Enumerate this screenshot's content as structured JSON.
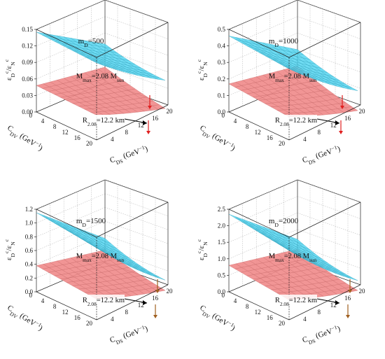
{
  "chart_data": [
    {
      "type": "surface3d",
      "title": "m",
      "title_sub": "D",
      "title_value": "=500",
      "ylabel_tag": "ε",
      "ylabel_sub1": "D",
      "ylabel_sup1": "c",
      "ylabel_sep": "/ε",
      "ylabel_sub2": "N",
      "ylabel_sup2": "c",
      "xlabel": "C",
      "xlabel_sub": "DS",
      "xlabel_unit": " (GeV",
      "xlabel_exp": "−1",
      "xlabel_close": ")",
      "zlabel": "C",
      "zlabel_sub": "DV",
      "zlabel_unit": " (GeV",
      "zlabel_exp": "−1",
      "zlabel_close": ")",
      "z_ticks": [
        "0.00",
        "0.03",
        "0.06",
        "0.09",
        "0.12",
        "0.15"
      ],
      "z_range": [
        0,
        0.15
      ],
      "x_ticks": [
        "4",
        "8",
        "12",
        "16",
        "20"
      ],
      "x_range": [
        0,
        20
      ],
      "y_ticks": [
        "0",
        "4",
        "8",
        "12",
        "16",
        "20"
      ],
      "y_range": [
        0,
        20
      ],
      "corner_x_zero": "0",
      "surfaces": [
        {
          "name": "Mmax",
          "color": "#4fd4f0",
          "corners": {
            "a": 0.145,
            "b": 0.14,
            "c": 0.055,
            "d": 0.07
          }
        },
        {
          "name": "R2.08",
          "color": "#f08a8a",
          "corners": {
            "a": 0.048,
            "b": 0.045,
            "c": 0.004,
            "d": 0.028
          }
        }
      ],
      "annotations": [
        {
          "main": "M",
          "sub": "max",
          "rest": "=2.08 M",
          "sub2": "sun"
        },
        {
          "main": "R",
          "sub": "2.08",
          "rest": "=12.2 km",
          "sub2": ""
        }
      ]
    },
    {
      "type": "surface3d",
      "title": "m",
      "title_sub": "D",
      "title_value": "=1000",
      "ylabel_tag": "ε",
      "ylabel_sub1": "D",
      "ylabel_sup1": "c",
      "ylabel_sep": "/ε",
      "ylabel_sub2": "N",
      "ylabel_sup2": "c",
      "xlabel": "C",
      "xlabel_sub": "DS",
      "xlabel_unit": " (GeV",
      "xlabel_exp": "−1",
      "xlabel_close": ")",
      "zlabel": "C",
      "zlabel_sub": "DV",
      "zlabel_unit": " (GeV",
      "zlabel_exp": "−1",
      "zlabel_close": ")",
      "z_ticks": [
        "0.0",
        "0.1",
        "0.2",
        "0.3",
        "0.4",
        "0.5"
      ],
      "z_range": [
        0,
        0.5
      ],
      "x_ticks": [
        "4",
        "8",
        "12",
        "16",
        "20"
      ],
      "x_range": [
        0,
        20
      ],
      "y_ticks": [
        "0",
        "4",
        "8",
        "12",
        "16",
        "20"
      ],
      "y_range": [
        0,
        20
      ],
      "corner_x_zero": "0",
      "surfaces": [
        {
          "name": "Mmax",
          "color": "#4fd4f0",
          "corners": {
            "a": 0.46,
            "b": 0.43,
            "c": 0.12,
            "d": 0.2
          }
        },
        {
          "name": "R2.08",
          "color": "#f08a8a",
          "corners": {
            "a": 0.17,
            "b": 0.14,
            "c": 0.0,
            "d": 0.1
          }
        }
      ],
      "annotations": [
        {
          "main": "M",
          "sub": "max",
          "rest": "=2.08 M",
          "sub2": "sun"
        },
        {
          "main": "R",
          "sub": "2.08",
          "rest": "=12.2 km",
          "sub2": ""
        }
      ]
    },
    {
      "type": "surface3d",
      "title": "m",
      "title_sub": "D",
      "title_value": "=1500",
      "ylabel_tag": "ε",
      "ylabel_sub1": "D",
      "ylabel_sup1": "c",
      "ylabel_sep": "/ε",
      "ylabel_sub2": "N",
      "ylabel_sup2": "c",
      "xlabel": "C",
      "xlabel_sub": "DS",
      "xlabel_unit": " (GeV",
      "xlabel_exp": "−1",
      "xlabel_close": ")",
      "zlabel": "C",
      "zlabel_sub": "DV",
      "zlabel_unit": " (GeV",
      "zlabel_exp": "−1",
      "zlabel_close": ")",
      "z_ticks": [
        "0.0",
        "0.2",
        "0.4",
        "0.6",
        "0.8",
        "1.0",
        "1.2"
      ],
      "z_range": [
        0,
        1.2
      ],
      "x_ticks": [
        "4",
        "8",
        "12",
        "16",
        "20"
      ],
      "x_range": [
        0,
        20
      ],
      "y_ticks": [
        "0",
        "4",
        "8",
        "12",
        "16",
        "20"
      ],
      "y_range": [
        0,
        20
      ],
      "corner_x_zero": "0",
      "surfaces": [
        {
          "name": "Mmax",
          "color": "#4fd4f0",
          "corners": {
            "a": 1.15,
            "b": 1.05,
            "c": 0.15,
            "d": 0.35
          }
        },
        {
          "name": "R2.08",
          "color": "#f08a8a",
          "corners": {
            "a": 0.38,
            "b": 0.3,
            "c": 0.0,
            "d": 0.18
          }
        }
      ],
      "annotations": [
        {
          "main": "M",
          "sub": "max",
          "rest": "=2.08 M",
          "sub2": "sun"
        },
        {
          "main": "R",
          "sub": "2.08",
          "rest": "=12.2 km",
          "sub2": ""
        }
      ]
    },
    {
      "type": "surface3d",
      "title": "m",
      "title_sub": "D",
      "title_value": "=2000",
      "ylabel_tag": "ε",
      "ylabel_sub1": "D",
      "ylabel_sup1": "c",
      "ylabel_sep": "/ε",
      "ylabel_sub2": "N",
      "ylabel_sup2": "c",
      "xlabel": "C",
      "xlabel_sub": "DS",
      "xlabel_unit": " (GeV",
      "xlabel_exp": "−1",
      "xlabel_close": ")",
      "zlabel": "C",
      "zlabel_sub": "DV",
      "zlabel_unit": " (GeV",
      "zlabel_exp": "−1",
      "zlabel_close": ")",
      "z_ticks": [
        "0.0",
        "0.5",
        "1.0",
        "1.5",
        "2.0",
        "2.5"
      ],
      "z_range": [
        0,
        2.5
      ],
      "x_ticks": [
        "4",
        "8",
        "12",
        "16",
        "20"
      ],
      "x_range": [
        0,
        20
      ],
      "y_ticks": [
        "0",
        "4",
        "8",
        "12",
        "16",
        "20"
      ],
      "y_range": [
        0,
        20
      ],
      "corner_x_zero": "0",
      "surfaces": [
        {
          "name": "Mmax",
          "color": "#4fd4f0",
          "corners": {
            "a": 2.35,
            "b": 2.1,
            "c": 0.3,
            "d": 0.7
          }
        },
        {
          "name": "R2.08",
          "color": "#f08a8a",
          "corners": {
            "a": 0.8,
            "b": 0.6,
            "c": 0.0,
            "d": 0.4
          }
        }
      ],
      "annotations": [
        {
          "main": "M",
          "sub": "max",
          "rest": "=2.08 M",
          "sub2": "sun"
        },
        {
          "main": "R",
          "sub": "2.08",
          "rest": "=12.2 km",
          "sub2": ""
        }
      ]
    }
  ]
}
